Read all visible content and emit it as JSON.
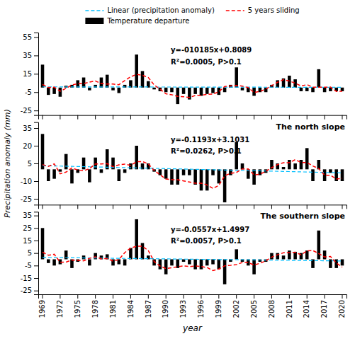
{
  "chart_data": [
    {
      "type": "bar",
      "categories": [
        "1969",
        null,
        null,
        "1972",
        null,
        null,
        "1975",
        null,
        null,
        "1978",
        null,
        null,
        "1981",
        null,
        null,
        "1984",
        null,
        null,
        "1987",
        null,
        null,
        "1990",
        null,
        null,
        "1993",
        null,
        null,
        "1996",
        null,
        null,
        "1999",
        null,
        null,
        "2002",
        null,
        null,
        "2005",
        null,
        null,
        "2008",
        null,
        null,
        "2011",
        null,
        null,
        "2014",
        null,
        null,
        "2017",
        null,
        null,
        "2020"
      ],
      "series": [
        {
          "name": "Temperature departure",
          "type": "bar",
          "color": "#000000",
          "values": [
            25,
            -8,
            -7,
            -10,
            2,
            3,
            8,
            11,
            -3,
            3,
            11,
            14,
            -3,
            -6,
            3,
            8,
            36,
            18,
            7,
            -2,
            -4,
            -5,
            -5,
            -18,
            -7,
            -13,
            -7,
            -9,
            -7,
            -6,
            -8,
            -5,
            3,
            22,
            -3,
            -5,
            -9,
            -5,
            -5,
            3,
            8,
            10,
            13,
            9,
            -4,
            -4,
            -5,
            20,
            -5,
            -4,
            -4,
            -4
          ]
        },
        {
          "name": "Linear (precipitation anomaly)",
          "type": "line",
          "color": "#00BFFF",
          "line_style": "dashed",
          "values": [
            0.8089,
            0.798715,
            0.78853,
            0.778345,
            0.76816,
            0.757975,
            0.74779,
            0.737605,
            0.72742,
            0.717235,
            0.70705,
            0.696865,
            0.68668,
            0.676495,
            0.66631,
            0.656125,
            0.64594,
            0.635755,
            0.62557,
            0.615385,
            0.6052,
            0.595015,
            0.58483,
            0.574645,
            0.56446,
            0.554275,
            0.54409,
            0.533905,
            0.52372,
            0.513535,
            0.50335,
            0.493165,
            0.48298,
            0.472795,
            0.46261,
            0.452425,
            0.44224,
            0.432055,
            0.42187,
            0.411685,
            0.4015,
            0.391315,
            0.38113,
            0.370945,
            0.36076,
            0.350575,
            0.34039,
            0.330205,
            0.32002,
            0.309835,
            0.29965,
            0.289465
          ]
        },
        {
          "name": "5 years sliding",
          "type": "line",
          "color": "#FF0000",
          "line_style": "dashed",
          "values": [
            3.3333,
            0,
            0.4,
            -4,
            -0.8,
            2.8,
            4.2,
            4.4,
            6,
            7.2,
            4.4,
            3.8,
            3.8,
            3.2,
            7.6,
            11.8,
            14.4,
            13.4,
            11,
            2.8,
            -1.8,
            -6.8,
            -7.8,
            -9.6,
            -10,
            -10.8,
            -8.6,
            -8.4,
            -7.4,
            -7,
            -4.6,
            1.2,
            1.8,
            2.4,
            1.6,
            0,
            -5.4,
            -4.2,
            -1.6,
            2.2,
            5.8,
            8.6,
            7.2,
            4.8,
            1.8,
            3.2,
            0.4,
            0.4,
            0.4,
            0.6,
            -4.25,
            -4
          ]
        }
      ],
      "annotations": [
        "y=-010185x+0.8089",
        "R²=0.0005,  P>0.1"
      ],
      "ylim": [
        -30,
        60
      ],
      "yticks": [
        -25,
        -5,
        15,
        35,
        55
      ],
      "legend": "top",
      "tick_labels": "y",
      "grid": false
    },
    {
      "type": "bar",
      "title": "The north slope",
      "ylabel": "Precipitation anomaly (mm)",
      "categories": [
        "1969",
        null,
        null,
        "1972",
        null,
        null,
        "1975",
        null,
        null,
        "1978",
        null,
        null,
        "1981",
        null,
        null,
        "1984",
        null,
        null,
        "1987",
        null,
        null,
        "1990",
        null,
        null,
        "1993",
        null,
        null,
        "1996",
        null,
        null,
        "1999",
        null,
        null,
        "2002",
        null,
        null,
        "2005",
        null,
        null,
        "2008",
        null,
        null,
        "2011",
        null,
        null,
        "2014",
        null,
        null,
        "2017",
        null,
        null,
        "2020"
      ],
      "series": [
        {
          "type": "bar",
          "color": "#000000",
          "values": [
            30,
            -10,
            -8,
            -2,
            13,
            -12,
            -3,
            10,
            -11,
            10,
            -3,
            17,
            10,
            -10,
            -3,
            5,
            20,
            5,
            5,
            -2,
            -5,
            -8,
            -13,
            -13,
            -5,
            -5,
            -13,
            -18,
            -18,
            -5,
            -12,
            -28,
            -5,
            23,
            5,
            -8,
            -13,
            -5,
            -3,
            8,
            5,
            2,
            8,
            5,
            8,
            18,
            -10,
            8,
            -10,
            -3,
            -10,
            -10
          ]
        },
        {
          "type": "line",
          "color": "#00BFFF",
          "line_style": "dashed",
          "values": [
            3.1031,
            2.9838,
            2.8645,
            2.7452,
            2.6259,
            2.5066,
            2.3873,
            2.268,
            2.1487,
            2.0294,
            1.9101,
            1.7908,
            1.6715,
            1.5522,
            1.4329,
            1.3136,
            1.1943,
            1.075,
            0.9557,
            0.8364,
            0.7171,
            0.5978,
            0.4785,
            0.3592,
            0.2399,
            0.1206,
            0.0013,
            -0.118,
            -0.2373,
            -0.3566,
            -0.4759,
            -0.5952,
            -0.7145,
            -0.8338,
            -0.9531,
            -1.0724,
            -1.1917,
            -1.311,
            -1.4303,
            -1.5496,
            -1.6689,
            -1.7882,
            -1.9075,
            -2.0268,
            -2.1461,
            -2.2654,
            -2.3847,
            -2.504,
            -2.6233,
            -2.7426,
            -2.8619,
            -2.9812
          ]
        },
        {
          "type": "line",
          "color": "#FF0000",
          "line_style": "dashed",
          "values": [
            4,
            2.5,
            4.6,
            -3.8,
            -2.4,
            1.2,
            -0.6,
            -1.2,
            0.6,
            4.6,
            4.6,
            4.8,
            2.2,
            3.8,
            4.4,
            3.4,
            6.4,
            6.6,
            4.6,
            -1,
            -4.6,
            -8.2,
            -8.8,
            -8.8,
            -9.8,
            -10.8,
            -11.8,
            -11.8,
            -13.2,
            -16.2,
            -13.6,
            -5.4,
            -3.4,
            -2.6,
            0.4,
            0.4,
            -4.8,
            -4.2,
            -1.6,
            1.4,
            4,
            5.6,
            5.6,
            8.2,
            5.8,
            5.8,
            2.8,
            0.6,
            -5,
            -5,
            -8.25,
            -7.6667
          ]
        }
      ],
      "annotations": [
        "y=-0.1193x+3.1031",
        "R²=0.0262,  P>0.1"
      ],
      "ylim": [
        -30,
        40
      ],
      "yticks": [
        -25,
        -10,
        5,
        20,
        35
      ],
      "tick_labels": "y",
      "grid": false
    },
    {
      "type": "bar",
      "title": "The southern slope",
      "xlabel": "year",
      "categories": [
        "1969",
        null,
        null,
        "1972",
        null,
        null,
        "1975",
        null,
        null,
        "1978",
        null,
        null,
        "1981",
        null,
        null,
        "1984",
        null,
        null,
        "1987",
        null,
        null,
        "1990",
        null,
        null,
        "1993",
        null,
        null,
        "1996",
        null,
        null,
        "1999",
        null,
        null,
        "2002",
        null,
        null,
        "2005",
        null,
        null,
        "2008",
        null,
        null,
        "2011",
        null,
        null,
        "2014",
        null,
        null,
        "2017",
        null,
        null,
        "2020"
      ],
      "series": [
        {
          "type": "bar",
          "color": "#000000",
          "values": [
            25,
            -3,
            -5,
            -4,
            7,
            -7,
            -2,
            3,
            -5,
            5,
            3,
            4,
            -5,
            -4,
            -5,
            9,
            32,
            13,
            3,
            -5,
            -8,
            -12,
            -5,
            -7,
            -2,
            -4,
            -8,
            -8,
            -5,
            -4,
            -8,
            -20,
            -2,
            8,
            -2,
            -5,
            -12,
            -2,
            -2,
            5,
            5,
            3,
            7,
            6,
            5,
            7,
            -7,
            23,
            7,
            -7,
            -7,
            -5
          ]
        },
        {
          "type": "line",
          "color": "#00BFFF",
          "line_style": "dashed",
          "values": [
            1.4997,
            1.444,
            1.3883,
            1.3326,
            1.2769,
            1.2212,
            1.1655,
            1.1098,
            1.0541,
            0.9984,
            0.9427,
            0.887,
            0.8313,
            0.7756,
            0.7199,
            0.6642,
            0.6085,
            0.5528,
            0.4971,
            0.4414,
            0.3857,
            0.33,
            0.2743,
            0.2186,
            0.1629,
            0.1072,
            0.0515,
            -0.0042,
            -0.0599,
            -0.1156,
            -0.1713,
            -0.227,
            -0.2827,
            -0.3384,
            -0.3941,
            -0.4498,
            -0.5055,
            -0.5612,
            -0.6169,
            -0.6726,
            -0.7283,
            -0.784,
            -0.8397,
            -0.8954,
            -0.9511,
            -1.0068,
            -1.0625,
            -1.1182,
            -1.1739,
            -1.2296,
            -1.2853,
            -1.341
          ]
        },
        {
          "type": "line",
          "color": "#FF0000",
          "line_style": "dashed",
          "values": [
            5.6667,
            3.25,
            4,
            -2.4,
            -2.2,
            -0.6,
            -0.8,
            -1.2,
            0.8,
            2,
            0.4,
            0.6,
            -1.4,
            -0.2,
            5.4,
            9,
            10.4,
            10.4,
            7,
            -1.8,
            -5.4,
            -7.4,
            -6.8,
            -6,
            -5.2,
            -5.8,
            -5.4,
            -5.8,
            -6.6,
            -9,
            -7.8,
            -5.2,
            -4.8,
            -4.2,
            -2.6,
            -2.6,
            -4.6,
            -3.2,
            -1.2,
            1.8,
            3.6,
            5.2,
            5.2,
            5.6,
            3.6,
            6.8,
            7,
            4.6,
            1.8,
            2.2,
            -3,
            -6.3333
          ]
        }
      ],
      "annotations": [
        "y=-0.0557x+1.4997",
        "R²=0.0057,  P>0.1"
      ],
      "ylim": [
        -28,
        38
      ],
      "yticks": [
        -25,
        -15,
        -5,
        5,
        15,
        25,
        35
      ],
      "grid": false
    }
  ]
}
